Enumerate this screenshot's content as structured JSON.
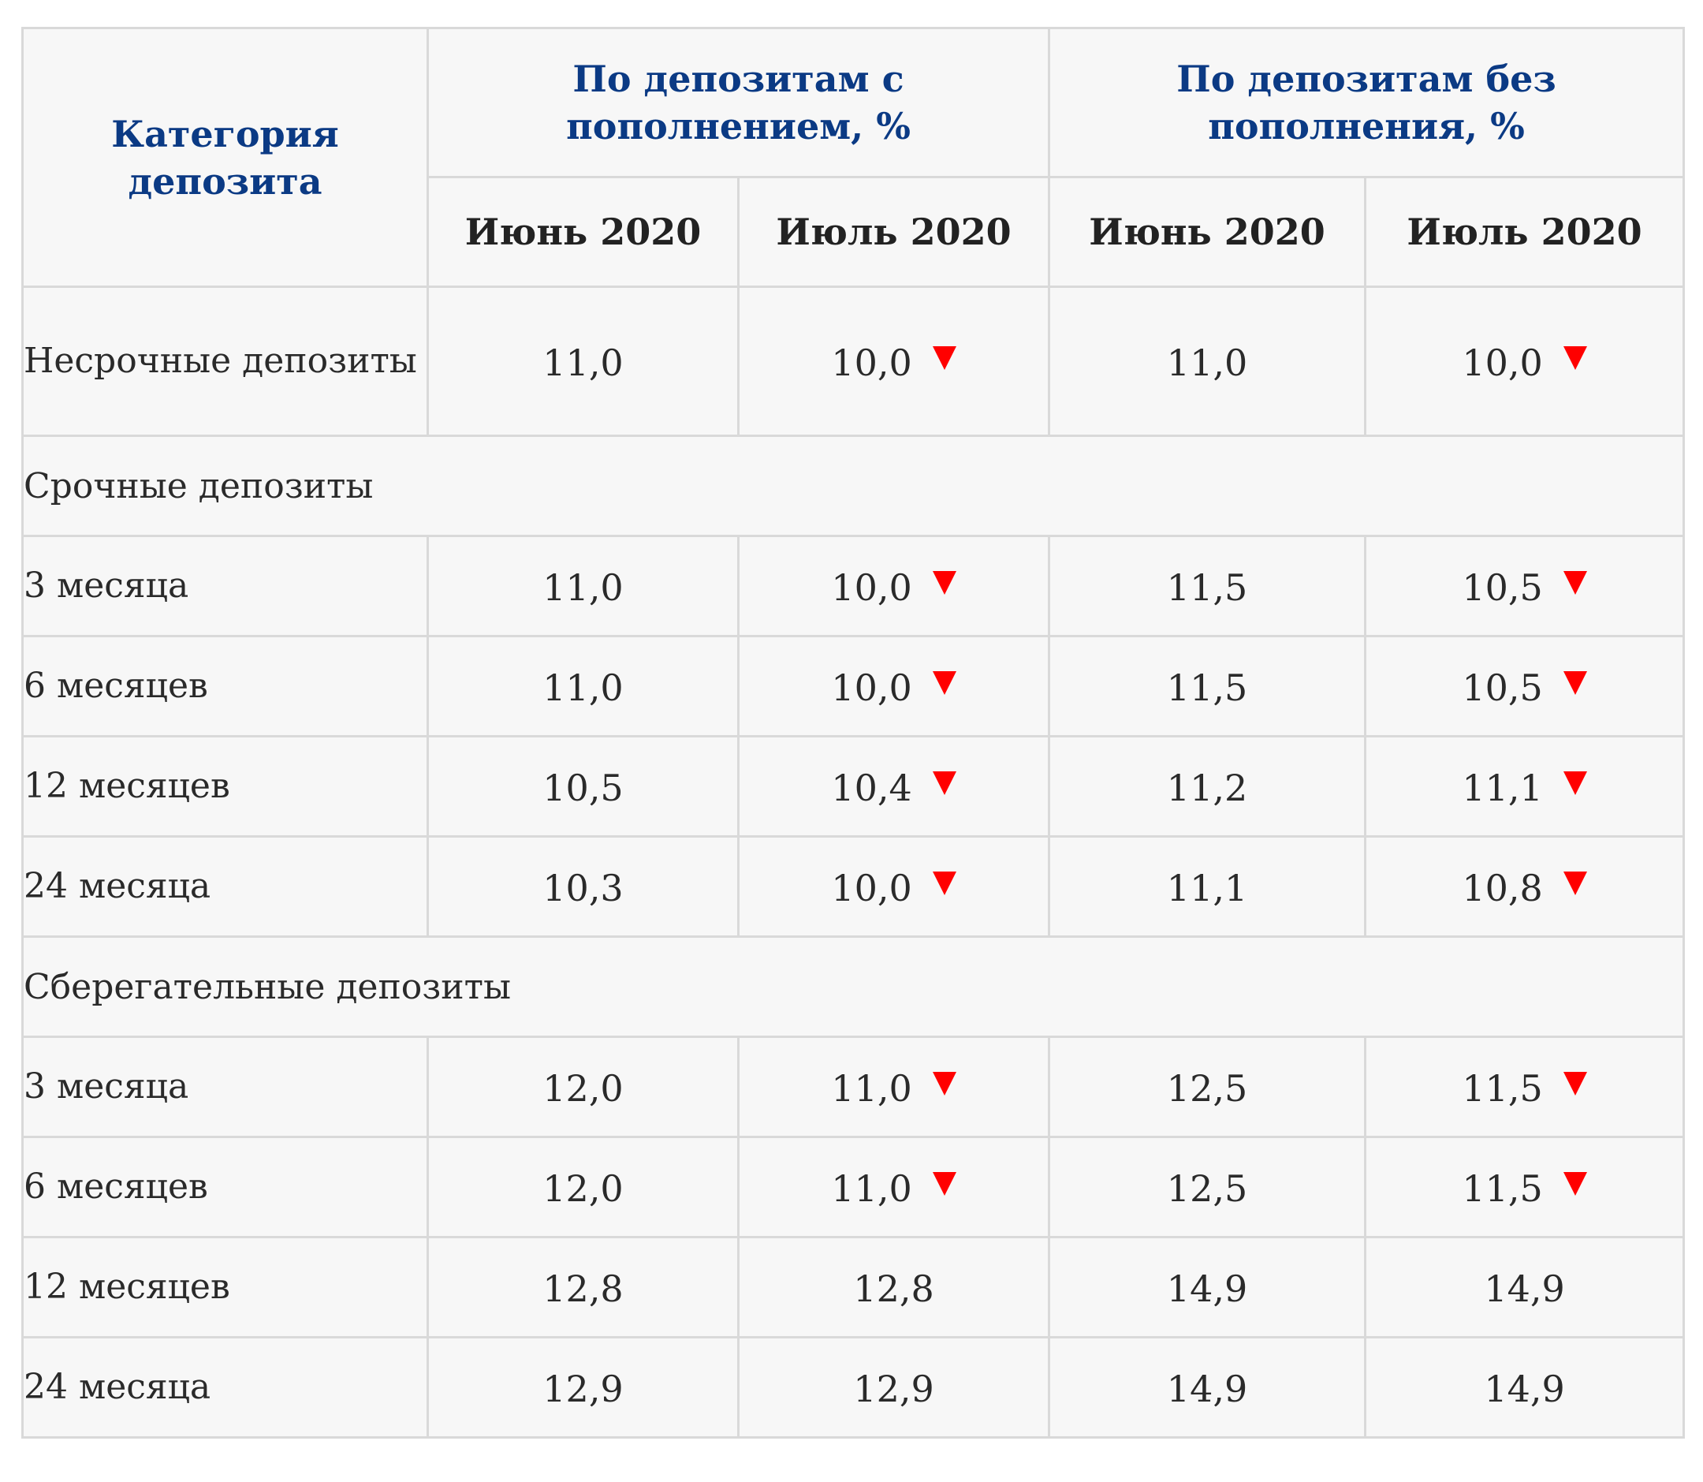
{
  "header": {
    "category": "Категория депозита",
    "with_topup": "По депозитам с пополнением, %",
    "without_topup": "По депозитам без пополнения, %",
    "months": [
      "Июнь 2020",
      "Июль 2020",
      "Июнь 2020",
      "Июль 2020"
    ]
  },
  "colors": {
    "header_text": "#0b3a84",
    "down_arrow": "#ff0000",
    "cell_bg": "#f7f7f7",
    "grid": "#d9d9d9"
  },
  "rows": {
    "demand": {
      "label": "Несрочные депозиты",
      "values": [
        "11,0",
        "10,0",
        "11,0",
        "10,0"
      ],
      "down": [
        false,
        true,
        false,
        true
      ]
    },
    "term_section": "Срочные депозиты",
    "term": [
      {
        "label": "3 месяца",
        "values": [
          "11,0",
          "10,0",
          "11,5",
          "10,5"
        ],
        "down": [
          false,
          true,
          false,
          true
        ]
      },
      {
        "label": "6 месяцев",
        "values": [
          "11,0",
          "10,0",
          "11,5",
          "10,5"
        ],
        "down": [
          false,
          true,
          false,
          true
        ]
      },
      {
        "label": "12 месяцев",
        "values": [
          "10,5",
          "10,4",
          "11,2",
          "11,1"
        ],
        "down": [
          false,
          true,
          false,
          true
        ]
      },
      {
        "label": "24 месяца",
        "values": [
          "10,3",
          "10,0",
          "11,1",
          "10,8"
        ],
        "down": [
          false,
          true,
          false,
          true
        ]
      }
    ],
    "savings_section": "Сберегательные депозиты",
    "savings": [
      {
        "label": "3 месяца",
        "values": [
          "12,0",
          "11,0",
          "12,5",
          "11,5"
        ],
        "down": [
          false,
          true,
          false,
          true
        ]
      },
      {
        "label": "6 месяцев",
        "values": [
          "12,0",
          "11,0",
          "12,5",
          "11,5"
        ],
        "down": [
          false,
          true,
          false,
          true
        ]
      },
      {
        "label": "12 месяцев",
        "values": [
          "12,8",
          "12,8",
          "14,9",
          "14,9"
        ],
        "down": [
          false,
          false,
          false,
          false
        ]
      },
      {
        "label": "24 месяца",
        "values": [
          "12,9",
          "12,9",
          "14,9",
          "14,9"
        ],
        "down": [
          false,
          false,
          false,
          false
        ]
      }
    ]
  }
}
